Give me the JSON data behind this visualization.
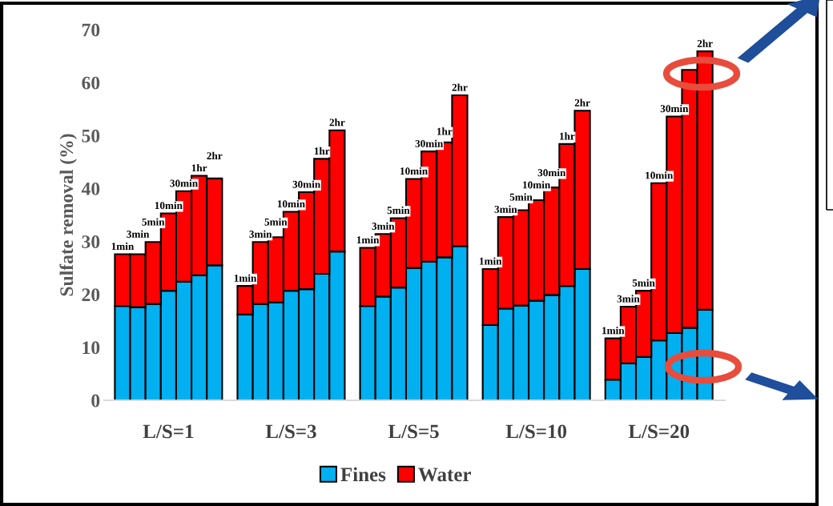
{
  "chart_data": {
    "type": "bar",
    "stacked": true,
    "ylabel": "Sulfate removal (%)",
    "ylim": [
      0,
      70
    ],
    "yticks": [
      0,
      10,
      20,
      30,
      40,
      50,
      60,
      70
    ],
    "grid": false,
    "legend": "bottom",
    "categories": [
      "1min",
      "3min",
      "5min",
      "10min",
      "30min",
      "1hr",
      "2hr",
      null,
      "1min",
      "3min",
      "5min",
      "10min",
      "30min",
      "1hr",
      "2hr",
      null,
      "1min",
      "3min",
      "5min",
      "10min",
      "30min",
      "1hr",
      "2hr",
      null,
      "1min",
      "3min",
      "5min",
      "10min",
      "30min",
      "1hr",
      "2hr",
      null,
      "1min",
      "3min",
      "5min",
      "10min",
      "30min",
      null,
      "2hr"
    ],
    "annotations": [
      "L/S=1",
      "L/S=3",
      "L/S=5",
      "L/S=10",
      "L/S=20"
    ],
    "series": [
      {
        "name": "Fines",
        "color": "#00b0f0",
        "values": [
          17.8,
          17.6,
          18.2,
          20.7,
          22.4,
          23.6,
          25.5,
          null,
          16.2,
          18.2,
          18.5,
          20.7,
          21.0,
          23.9,
          28.1,
          null,
          17.8,
          19.6,
          21.3,
          25.0,
          26.2,
          27.0,
          29.1,
          null,
          14.2,
          17.3,
          17.9,
          18.8,
          19.9,
          21.6,
          24.8,
          null,
          3.9,
          7.0,
          8.2,
          11.3,
          12.7,
          13.7,
          17.1
        ]
      },
      {
        "name": "Water",
        "color": "#ff0000",
        "values": [
          9.8,
          10.0,
          11.7,
          14.6,
          17.1,
          18.8,
          16.4,
          null,
          5.4,
          11.7,
          12.3,
          14.9,
          18.3,
          21.7,
          22.9,
          null,
          11.0,
          11.8,
          13.1,
          16.8,
          20.8,
          21.7,
          28.5,
          null,
          10.6,
          17.3,
          18.0,
          19.0,
          20.3,
          26.8,
          29.9,
          null,
          7.8,
          10.7,
          12.5,
          29.7,
          40.9,
          48.7,
          48.8
        ]
      }
    ]
  }
}
